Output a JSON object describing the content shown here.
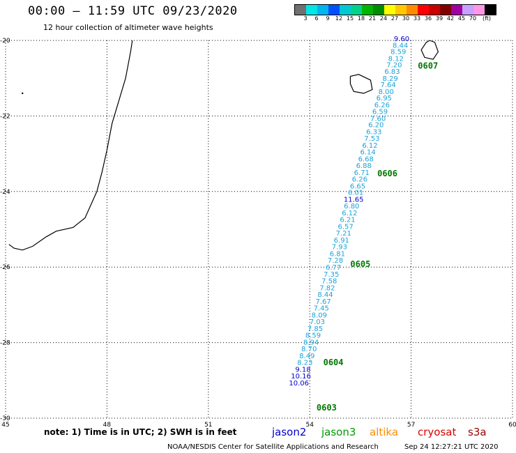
{
  "header": {
    "title": "00:00 – 11:59 UTC 09/23/2020",
    "subtitle": "12 hour collection of altimeter wave heights"
  },
  "colorbar": {
    "colors": [
      "#707070",
      "#00e5e5",
      "#00b4f0",
      "#0050ff",
      "#00c8d2",
      "#00d28c",
      "#00b400",
      "#008c00",
      "#ffff00",
      "#ffc800",
      "#ff8c00",
      "#ff0000",
      "#c80000",
      "#820000",
      "#a000a0",
      "#c8a0ff",
      "#ff96e6",
      "#000000"
    ],
    "labels": [
      "3",
      "6",
      "9",
      "12",
      "15",
      "18",
      "21",
      "24",
      "27",
      "30",
      "33",
      "36",
      "39",
      "42",
      "45",
      "70"
    ],
    "unit": "(ft)"
  },
  "map": {
    "lat_ticks": [
      "-20",
      "-22",
      "-24",
      "-26",
      "-28",
      "-30"
    ],
    "lon_ticks": [
      "45",
      "48",
      "51",
      "54",
      "57",
      "60"
    ],
    "lat_range": [
      -30,
      -20
    ],
    "lon_range": [
      45,
      60
    ],
    "grid": "dotted",
    "colors": {
      "track_light": "#1aa3d9",
      "track_dark": "#0000cc",
      "time_label": "#007700",
      "coast": "#000000"
    },
    "wave_points": [
      {
        "lon": 56.72,
        "lat": -20.02,
        "swh": "9.60",
        "c": "track_dark"
      },
      {
        "lon": 56.68,
        "lat": -20.19,
        "swh": "8.44",
        "c": "track_light"
      },
      {
        "lon": 56.62,
        "lat": -20.36,
        "swh": "8.59",
        "c": "track_light"
      },
      {
        "lon": 56.55,
        "lat": -20.54,
        "swh": "8.12",
        "c": "track_light"
      },
      {
        "lon": 56.5,
        "lat": -20.71,
        "swh": "7.20",
        "c": "track_light"
      },
      {
        "lon": 56.44,
        "lat": -20.89,
        "swh": "6.83",
        "c": "track_light"
      },
      {
        "lon": 56.38,
        "lat": -21.07,
        "swh": "8.29",
        "c": "track_light"
      },
      {
        "lon": 56.32,
        "lat": -21.24,
        "swh": "7.64",
        "c": "track_light"
      },
      {
        "lon": 56.26,
        "lat": -21.42,
        "swh": "8.00",
        "c": "track_light"
      },
      {
        "lon": 56.2,
        "lat": -21.59,
        "swh": "6.95",
        "c": "track_light"
      },
      {
        "lon": 56.14,
        "lat": -21.77,
        "swh": "6.26",
        "c": "track_light"
      },
      {
        "lon": 56.08,
        "lat": -21.95,
        "swh": "6.59",
        "c": "track_light"
      },
      {
        "lon": 56.02,
        "lat": -22.13,
        "swh": "7.60",
        "c": "track_light"
      },
      {
        "lon": 55.96,
        "lat": -22.3,
        "swh": "6.20",
        "c": "track_light"
      },
      {
        "lon": 55.9,
        "lat": -22.48,
        "swh": "6.33",
        "c": "track_light"
      },
      {
        "lon": 55.84,
        "lat": -22.66,
        "swh": "7.53",
        "c": "track_light"
      },
      {
        "lon": 55.78,
        "lat": -22.84,
        "swh": "6.12",
        "c": "track_light"
      },
      {
        "lon": 55.72,
        "lat": -23.02,
        "swh": "6.14",
        "c": "track_light"
      },
      {
        "lon": 55.66,
        "lat": -23.2,
        "swh": "6.68",
        "c": "track_light"
      },
      {
        "lon": 55.6,
        "lat": -23.38,
        "swh": "6.88",
        "c": "track_light"
      },
      {
        "lon": 55.54,
        "lat": -23.56,
        "swh": "6.71",
        "c": "track_light"
      },
      {
        "lon": 55.48,
        "lat": -23.74,
        "swh": "6.26",
        "c": "track_light"
      },
      {
        "lon": 55.42,
        "lat": -23.92,
        "swh": "6.65",
        "c": "track_light"
      },
      {
        "lon": 55.36,
        "lat": -24.09,
        "swh": "6.01",
        "c": "track_light"
      },
      {
        "lon": 55.3,
        "lat": -24.27,
        "swh": "11.65",
        "c": "track_dark"
      },
      {
        "lon": 55.24,
        "lat": -24.45,
        "swh": "6.80",
        "c": "track_light"
      },
      {
        "lon": 55.18,
        "lat": -24.63,
        "swh": "6.12",
        "c": "track_light"
      },
      {
        "lon": 55.12,
        "lat": -24.81,
        "swh": "6.21",
        "c": "track_light"
      },
      {
        "lon": 55.06,
        "lat": -24.99,
        "swh": "6.57",
        "c": "track_light"
      },
      {
        "lon": 55.0,
        "lat": -25.17,
        "swh": "7.21",
        "c": "track_light"
      },
      {
        "lon": 54.94,
        "lat": -25.35,
        "swh": "6.91",
        "c": "track_light"
      },
      {
        "lon": 54.88,
        "lat": -25.53,
        "swh": "7.93",
        "c": "track_light"
      },
      {
        "lon": 54.82,
        "lat": -25.71,
        "swh": "6.81",
        "c": "track_light"
      },
      {
        "lon": 54.76,
        "lat": -25.89,
        "swh": "7.28",
        "c": "track_light"
      },
      {
        "lon": 54.7,
        "lat": -26.07,
        "swh": "6.77",
        "c": "track_light"
      },
      {
        "lon": 54.64,
        "lat": -26.25,
        "swh": "7.35",
        "c": "track_light"
      },
      {
        "lon": 54.58,
        "lat": -26.43,
        "swh": "7.58",
        "c": "track_light"
      },
      {
        "lon": 54.52,
        "lat": -26.61,
        "swh": "7.82",
        "c": "track_light"
      },
      {
        "lon": 54.46,
        "lat": -26.79,
        "swh": "8.44",
        "c": "track_light"
      },
      {
        "lon": 54.4,
        "lat": -26.97,
        "swh": "7.67",
        "c": "track_light"
      },
      {
        "lon": 54.34,
        "lat": -27.15,
        "swh": "7.45",
        "c": "track_light"
      },
      {
        "lon": 54.28,
        "lat": -27.33,
        "swh": "8.09",
        "c": "track_light"
      },
      {
        "lon": 54.22,
        "lat": -27.51,
        "swh": "7.03",
        "c": "track_light"
      },
      {
        "lon": 54.16,
        "lat": -27.69,
        "swh": "7.85",
        "c": "track_light"
      },
      {
        "lon": 54.1,
        "lat": -27.87,
        "swh": "8.59",
        "c": "track_light"
      },
      {
        "lon": 54.04,
        "lat": -28.05,
        "swh": "8.94",
        "c": "track_light"
      },
      {
        "lon": 53.98,
        "lat": -28.23,
        "swh": "8.70",
        "c": "track_light"
      },
      {
        "lon": 53.92,
        "lat": -28.41,
        "swh": "8.49",
        "c": "track_light"
      },
      {
        "lon": 53.86,
        "lat": -28.59,
        "swh": "8.23",
        "c": "track_light"
      },
      {
        "lon": 53.8,
        "lat": -28.77,
        "swh": "9.18",
        "c": "track_dark"
      },
      {
        "lon": 53.74,
        "lat": -28.95,
        "swh": "10.16",
        "c": "track_dark"
      },
      {
        "lon": 53.68,
        "lat": -29.13,
        "swh": "10.06",
        "c": "track_dark"
      }
    ],
    "time_labels": [
      {
        "lon": 57.2,
        "lat": -20.75,
        "text": "0607"
      },
      {
        "lon": 56.0,
        "lat": -23.6,
        "text": "0606"
      },
      {
        "lon": 55.2,
        "lat": -26.0,
        "text": "0605"
      },
      {
        "lon": 54.4,
        "lat": -28.6,
        "text": "0604"
      },
      {
        "lon": 54.2,
        "lat": -29.8,
        "text": "0603"
      }
    ]
  },
  "legend": {
    "note": "note:  1) Time is in UTC;  2) SWH is in feet",
    "satellites": [
      {
        "name": "jason2",
        "color": "#0000cc"
      },
      {
        "name": "jason3",
        "color": "#009900"
      },
      {
        "name": "altika",
        "color": "#ff8c00"
      },
      {
        "name": "cryosat",
        "color": "#dd0000"
      },
      {
        "name": "s3a",
        "color": "#990000"
      }
    ]
  },
  "footer": {
    "credit": "NOAA/NESDIS Center for Satellite Applications and Research",
    "date": "Sep 24 12:27:21 UTC 2020"
  }
}
